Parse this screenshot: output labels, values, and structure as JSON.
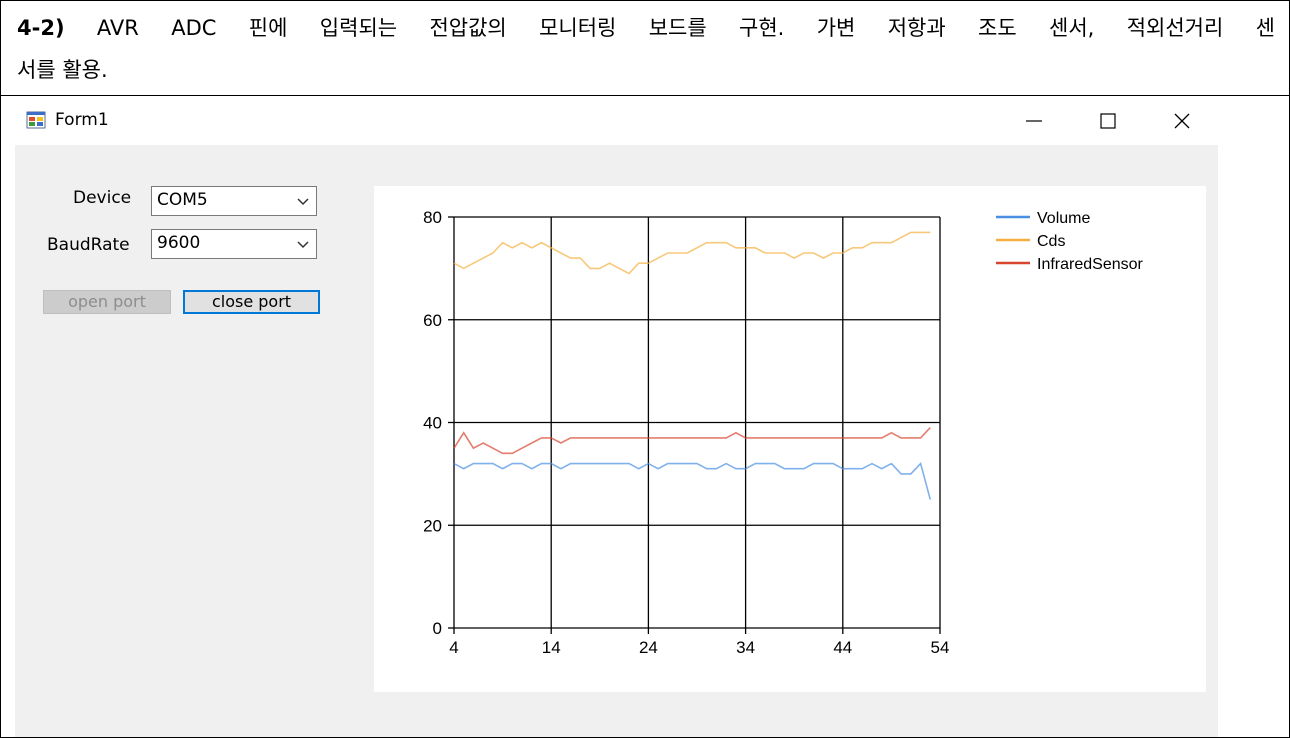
{
  "document": {
    "heading_number": "4-2)",
    "heading_line1": " AVR ADC 핀에 입력되는 전압값의 모니터링 보드를 구현. 가변 저항과 조도 센서, 적외선거리 센",
    "heading_line2": "서를 활용."
  },
  "window": {
    "title": "Form1",
    "icon": "form-app-icon",
    "controls": {
      "minimize": "minimize-icon",
      "maximize": "maximize-icon",
      "close": "close-icon"
    }
  },
  "form": {
    "device_label": "Device",
    "device_value": "COM5",
    "baud_label": "BaudRate",
    "baud_value": "9600",
    "open_port_label": "open port",
    "close_port_label": "close port",
    "open_port_enabled": false
  },
  "chart_data": {
    "type": "line",
    "title": "",
    "xlabel": "",
    "ylabel": "",
    "xlim": [
      4,
      54
    ],
    "ylim": [
      0,
      80
    ],
    "x_ticks": [
      "4",
      "14",
      "24",
      "34",
      "44",
      "54"
    ],
    "y_ticks": [
      "0",
      "20",
      "40",
      "60",
      "80"
    ],
    "grid": true,
    "legend_position": "top-right",
    "x": [
      4,
      5,
      6,
      7,
      8,
      9,
      10,
      11,
      12,
      13,
      14,
      15,
      16,
      17,
      18,
      19,
      20,
      21,
      22,
      23,
      24,
      25,
      26,
      27,
      28,
      29,
      30,
      31,
      32,
      33,
      34,
      35,
      36,
      37,
      38,
      39,
      40,
      41,
      42,
      43,
      44,
      45,
      46,
      47,
      48,
      49,
      50,
      51,
      52,
      53
    ],
    "series": [
      {
        "name": "Volume",
        "color": "#4a90e2",
        "values": [
          32,
          31,
          32,
          32,
          32,
          31,
          32,
          32,
          31,
          32,
          32,
          31,
          32,
          32,
          32,
          32,
          32,
          32,
          32,
          31,
          32,
          31,
          32,
          32,
          32,
          32,
          31,
          31,
          32,
          31,
          31,
          32,
          32,
          32,
          31,
          31,
          31,
          32,
          32,
          32,
          31,
          31,
          31,
          32,
          31,
          32,
          30,
          30,
          32,
          25
        ]
      },
      {
        "name": "Cds",
        "color": "#f5b041",
        "values": [
          71,
          70,
          71,
          72,
          73,
          75,
          74,
          75,
          74,
          75,
          74,
          73,
          72,
          72,
          70,
          70,
          71,
          70,
          69,
          71,
          71,
          72,
          73,
          73,
          73,
          74,
          75,
          75,
          75,
          74,
          74,
          74,
          73,
          73,
          73,
          72,
          73,
          73,
          72,
          73,
          73,
          74,
          74,
          75,
          75,
          75,
          76,
          77,
          77,
          77
        ]
      },
      {
        "name": "InfraredSensor",
        "color": "#d9462f",
        "values": [
          35,
          38,
          35,
          36,
          35,
          34,
          34,
          35,
          36,
          37,
          37,
          36,
          37,
          37,
          37,
          37,
          37,
          37,
          37,
          37,
          37,
          37,
          37,
          37,
          37,
          37,
          37,
          37,
          37,
          38,
          37,
          37,
          37,
          37,
          37,
          37,
          37,
          37,
          37,
          37,
          37,
          37,
          37,
          37,
          37,
          38,
          37,
          37,
          37,
          39
        ]
      }
    ]
  }
}
